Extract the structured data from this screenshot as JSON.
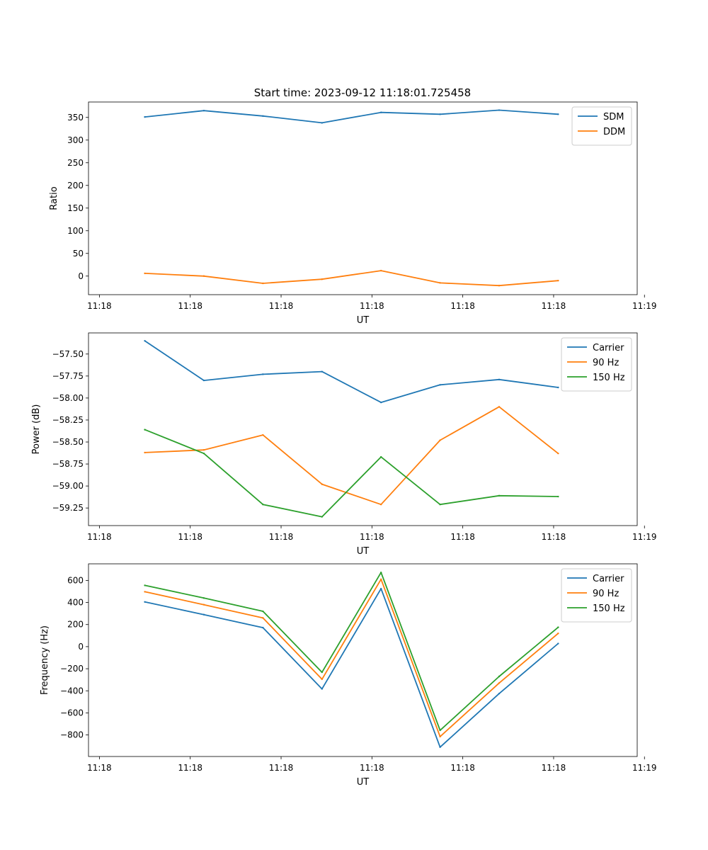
{
  "figure": {
    "title": "Start time: 2023-09-12 11:18:01.725458"
  },
  "chart_data": [
    {
      "type": "line",
      "xlabel": "UT",
      "ylabel": "Ratio",
      "x_tick_labels": [
        "11:18",
        "11:18",
        "11:18",
        "11:18",
        "11:18",
        "11:18",
        "11:19"
      ],
      "xlim": [
        -0.12,
        5.92
      ],
      "ylim": [
        -41,
        384
      ],
      "y_ticks": [
        0,
        50,
        100,
        150,
        200,
        250,
        300,
        350
      ],
      "legend": "upper-right",
      "x": [
        0.5,
        1.15,
        1.8,
        2.45,
        3.1,
        3.75,
        4.4,
        5.05
      ],
      "series": [
        {
          "name": "SDM",
          "color": "#1f77b4",
          "values": [
            351,
            365,
            353,
            338,
            361,
            357,
            366,
            357
          ]
        },
        {
          "name": "DDM",
          "color": "#ff7f0e",
          "values": [
            6,
            0,
            -16,
            -7,
            12,
            -15,
            -21,
            -10
          ]
        }
      ]
    },
    {
      "type": "line",
      "xlabel": "UT",
      "ylabel": "Power (dB)",
      "x_tick_labels": [
        "11:18",
        "11:18",
        "11:18",
        "11:18",
        "11:18",
        "11:18",
        "11:19"
      ],
      "xlim": [
        -0.12,
        5.92
      ],
      "ylim": [
        -59.45,
        -57.26
      ],
      "y_ticks": [
        -59.25,
        -59.0,
        -58.75,
        -58.5,
        -58.25,
        -58.0,
        -57.75,
        -57.5
      ],
      "y_tick_labels": [
        "−59.25",
        "−59.00",
        "−58.75",
        "−58.50",
        "−58.25",
        "−58.00",
        "−57.75",
        "−57.50"
      ],
      "legend": "upper-right",
      "x": [
        0.5,
        1.15,
        1.8,
        2.45,
        3.1,
        3.75,
        4.4,
        5.05
      ],
      "series": [
        {
          "name": "Carrier",
          "color": "#1f77b4",
          "values": [
            -57.35,
            -57.8,
            -57.73,
            -57.7,
            -58.05,
            -57.85,
            -57.79,
            -57.88
          ]
        },
        {
          "name": "90 Hz",
          "color": "#ff7f0e",
          "values": [
            -58.62,
            -58.59,
            -58.42,
            -58.98,
            -59.21,
            -58.48,
            -58.1,
            -58.63
          ]
        },
        {
          "name": "150 Hz",
          "color": "#2ca02c",
          "values": [
            -58.36,
            -58.63,
            -59.21,
            -59.35,
            -58.67,
            -59.21,
            -59.11,
            -59.12
          ]
        }
      ]
    },
    {
      "type": "line",
      "xlabel": "UT",
      "ylabel": "Frequency (Hz)",
      "x_tick_labels": [
        "11:18",
        "11:18",
        "11:18",
        "11:18",
        "11:18",
        "11:18",
        "11:19"
      ],
      "xlim": [
        -0.12,
        5.92
      ],
      "ylim": [
        -995,
        750
      ],
      "y_ticks": [
        -800,
        -600,
        -400,
        -200,
        0,
        200,
        400,
        600
      ],
      "y_tick_labels": [
        "−800",
        "−600",
        "−400",
        "−200",
        "0",
        "200",
        "400",
        "600"
      ],
      "legend": "upper-right",
      "x": [
        0.5,
        1.15,
        1.8,
        2.45,
        3.1,
        3.75,
        4.4,
        5.05
      ],
      "series": [
        {
          "name": "Carrier",
          "color": "#1f77b4",
          "values": [
            405,
            290,
            172,
            -383,
            525,
            -910,
            -425,
            28
          ]
        },
        {
          "name": "90 Hz",
          "color": "#ff7f0e",
          "values": [
            497,
            380,
            260,
            -295,
            610,
            -815,
            -330,
            120
          ]
        },
        {
          "name": "150 Hz",
          "color": "#2ca02c",
          "values": [
            555,
            440,
            320,
            -232,
            672,
            -758,
            -270,
            175
          ]
        }
      ]
    }
  ]
}
